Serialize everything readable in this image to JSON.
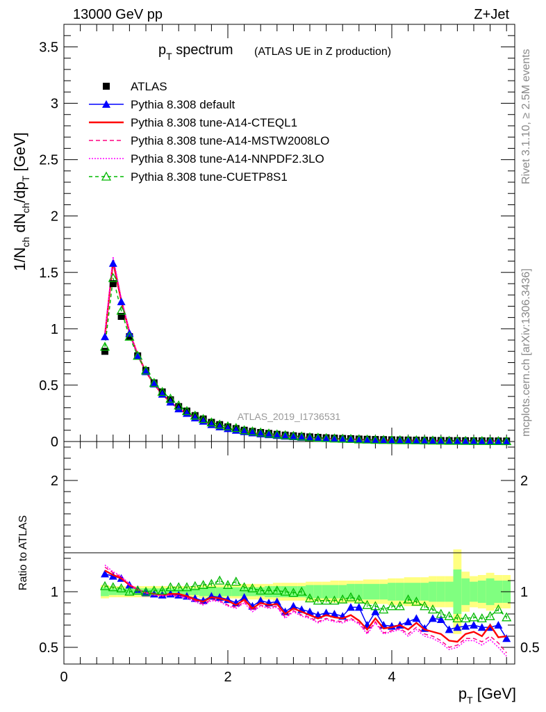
{
  "header": {
    "left": "13000 GeV pp",
    "right": "Z+Jet"
  },
  "title": {
    "main_base": "p",
    "main_sub": "T",
    "main_rest": " spectrum",
    "small": "(ATLAS UE in Z production)"
  },
  "side_text": {
    "rivet": "Rivet 3.1.10, ≥ 2.5M events",
    "mcplots": "mcplots.cern.ch [arXiv:1306.3436]"
  },
  "watermark": "ATLAS_2019_I1736531",
  "axes": {
    "ylabel_main": "1/N_ch dN_ch/dp_T [GeV]",
    "ylabel_ratio": "Ratio to ATLAS",
    "xlabel": "p_T [GeV]"
  },
  "legend": [
    {
      "label": "ATLAS",
      "color": "#000000",
      "marker": "square",
      "dash": ""
    },
    {
      "label": "Pythia 8.308 default",
      "color": "#0000ff",
      "marker": "triangle",
      "dash": ""
    },
    {
      "label": "Pythia 8.308 tune-A14-CTEQL1",
      "color": "#ff0000",
      "marker": "none",
      "dash": ""
    },
    {
      "label": "Pythia 8.308 tune-A14-MSTW2008LO",
      "color": "#ff0080",
      "marker": "none",
      "dash": "6,4"
    },
    {
      "label": "Pythia 8.308 tune-A14-NNPDF2.3LO",
      "color": "#ff00ff",
      "marker": "none",
      "dash": "2,2"
    },
    {
      "label": "Pythia 8.308 tune-CUETP8S1",
      "color": "#00b800",
      "marker": "open-triangle",
      "dash": "5,4"
    }
  ],
  "chart_data": [
    {
      "type": "line",
      "panel": "main",
      "xlim": [
        0,
        5.5
      ],
      "ylim": [
        0,
        3.7
      ],
      "yticks": [
        "0",
        "0.5",
        "1",
        "1.5",
        "2",
        "2.5",
        "3",
        "3.5"
      ],
      "xticks": [
        0,
        2,
        4
      ],
      "x": [
        0.5,
        0.6,
        0.7,
        0.8,
        0.9,
        1.0,
        1.1,
        1.2,
        1.3,
        1.4,
        1.5,
        1.6,
        1.7,
        1.8,
        1.9,
        2.0,
        2.1,
        2.2,
        2.3,
        2.4,
        2.5,
        2.6,
        2.7,
        2.8,
        2.9,
        3.0,
        3.1,
        3.2,
        3.3,
        3.4,
        3.5,
        3.6,
        3.7,
        3.8,
        3.9,
        4.0,
        4.1,
        4.2,
        4.3,
        4.4,
        4.5,
        4.6,
        4.7,
        4.8,
        4.9,
        5.0,
        5.1,
        5.2,
        5.3,
        5.4
      ],
      "series": [
        {
          "name": "ATLAS",
          "values": [
            0.8,
            1.4,
            1.11,
            0.93,
            0.76,
            0.63,
            0.52,
            0.44,
            0.37,
            0.31,
            0.27,
            0.23,
            0.2,
            0.17,
            0.15,
            0.13,
            0.115,
            0.1,
            0.09,
            0.08,
            0.072,
            0.064,
            0.057,
            0.051,
            0.046,
            0.041,
            0.037,
            0.033,
            0.03,
            0.027,
            0.025,
            0.022,
            0.02,
            0.018,
            0.017,
            0.015,
            0.014,
            0.013,
            0.012,
            0.011,
            0.01,
            0.009,
            0.0085,
            0.008,
            0.0072,
            0.0066,
            0.006,
            0.0055,
            0.005,
            0.0046
          ]
        },
        {
          "name": "Pythia 8.308 default",
          "values": [
            0.93,
            1.58,
            1.24,
            0.96,
            0.76,
            0.62,
            0.51,
            0.42,
            0.35,
            0.29,
            0.25,
            0.21,
            0.18,
            0.15,
            0.13,
            0.115,
            0.1,
            0.088,
            0.077,
            0.068,
            0.061,
            0.054,
            0.048,
            0.043,
            0.038,
            0.034,
            0.03,
            0.027,
            0.024,
            0.022,
            0.02,
            0.018,
            0.016,
            0.014,
            0.013,
            0.012,
            0.011,
            0.01,
            0.009,
            0.008,
            0.0075,
            0.007,
            0.0063,
            0.0058,
            0.0052,
            0.0047,
            0.0042,
            0.0038,
            0.0035,
            0.003
          ]
        },
        {
          "name": "Pythia 8.308 tune-A14-CTEQL1",
          "values": [
            0.94,
            1.6,
            1.25,
            0.97,
            0.77,
            0.62,
            0.51,
            0.42,
            0.35,
            0.29,
            0.25,
            0.21,
            0.18,
            0.15,
            0.13,
            0.114,
            0.1,
            0.087,
            0.076,
            0.067,
            0.06,
            0.053,
            0.047,
            0.042,
            0.037,
            0.033,
            0.029,
            0.026,
            0.023,
            0.021,
            0.019,
            0.017,
            0.015,
            0.013,
            0.012,
            0.011,
            0.01,
            0.009,
            0.0085,
            0.0075,
            0.007,
            0.0063,
            0.0058,
            0.0052,
            0.0047,
            0.0043,
            0.0038,
            0.0034,
            0.0031,
            0.0028
          ]
        },
        {
          "name": "Pythia 8.308 tune-A14-MSTW2008LO",
          "values": [
            0.95,
            1.62,
            1.26,
            0.97,
            0.77,
            0.62,
            0.51,
            0.42,
            0.35,
            0.29,
            0.25,
            0.21,
            0.18,
            0.15,
            0.13,
            0.113,
            0.099,
            0.086,
            0.075,
            0.066,
            0.059,
            0.052,
            0.046,
            0.041,
            0.036,
            0.032,
            0.028,
            0.025,
            0.022,
            0.02,
            0.018,
            0.016,
            0.014,
            0.013,
            0.012,
            0.011,
            0.0095,
            0.0085,
            0.0078,
            0.007,
            0.0062,
            0.0056,
            0.005,
            0.0046,
            0.0042,
            0.0038,
            0.0034,
            0.003,
            0.0027,
            0.0025
          ]
        },
        {
          "name": "Pythia 8.308 tune-A14-NNPDF2.3LO",
          "values": [
            0.96,
            1.64,
            1.27,
            0.98,
            0.77,
            0.62,
            0.51,
            0.42,
            0.35,
            0.29,
            0.25,
            0.21,
            0.18,
            0.15,
            0.13,
            0.113,
            0.099,
            0.086,
            0.075,
            0.066,
            0.058,
            0.052,
            0.046,
            0.04,
            0.036,
            0.032,
            0.028,
            0.025,
            0.022,
            0.02,
            0.018,
            0.016,
            0.014,
            0.013,
            0.012,
            0.011,
            0.0095,
            0.0085,
            0.0077,
            0.007,
            0.0062,
            0.0056,
            0.005,
            0.0046,
            0.0042,
            0.0038,
            0.0034,
            0.003,
            0.0027,
            0.0024
          ]
        },
        {
          "name": "Pythia 8.308 tune-CUETP8S1",
          "values": [
            0.84,
            1.45,
            1.16,
            0.93,
            0.76,
            0.63,
            0.52,
            0.44,
            0.38,
            0.32,
            0.27,
            0.23,
            0.2,
            0.17,
            0.15,
            0.135,
            0.12,
            0.1,
            0.09,
            0.08,
            0.071,
            0.063,
            0.056,
            0.05,
            0.045,
            0.038,
            0.034,
            0.03,
            0.027,
            0.025,
            0.023,
            0.019,
            0.017,
            0.015,
            0.014,
            0.013,
            0.012,
            0.012,
            0.011,
            0.0095,
            0.0085,
            0.0075,
            0.0065,
            0.006,
            0.0055,
            0.005,
            0.0046,
            0.0043,
            0.0038,
            0.0035
          ]
        }
      ]
    },
    {
      "type": "line",
      "panel": "ratio",
      "xlim": [
        0,
        5.5
      ],
      "ylim": [
        0.35,
        2.35
      ],
      "yticks": [
        "0.5",
        "1",
        "2"
      ],
      "xticks": [
        0,
        2,
        4
      ],
      "xtick_labels": [
        "0",
        "2",
        "4"
      ],
      "x": [
        0.5,
        0.6,
        0.7,
        0.8,
        0.9,
        1.0,
        1.1,
        1.2,
        1.3,
        1.4,
        1.5,
        1.6,
        1.7,
        1.8,
        1.9,
        2.0,
        2.1,
        2.2,
        2.3,
        2.4,
        2.5,
        2.6,
        2.7,
        2.8,
        2.9,
        3.0,
        3.1,
        3.2,
        3.3,
        3.4,
        3.5,
        3.6,
        3.7,
        3.8,
        3.9,
        4.0,
        4.1,
        4.2,
        4.3,
        4.4,
        4.5,
        4.6,
        4.7,
        4.8,
        4.9,
        5.0,
        5.1,
        5.2,
        5.3,
        5.4
      ],
      "band_inner": [
        0.04,
        0.03,
        0.03,
        0.03,
        0.03,
        0.03,
        0.03,
        0.03,
        0.03,
        0.03,
        0.03,
        0.03,
        0.04,
        0.04,
        0.04,
        0.04,
        0.04,
        0.04,
        0.04,
        0.04,
        0.05,
        0.05,
        0.05,
        0.05,
        0.05,
        0.06,
        0.06,
        0.06,
        0.06,
        0.06,
        0.07,
        0.07,
        0.07,
        0.07,
        0.07,
        0.08,
        0.08,
        0.08,
        0.08,
        0.08,
        0.09,
        0.09,
        0.09,
        0.2,
        0.12,
        0.09,
        0.1,
        0.12,
        0.1,
        0.1
      ],
      "band_outer": [
        0.06,
        0.05,
        0.05,
        0.05,
        0.05,
        0.05,
        0.05,
        0.05,
        0.05,
        0.05,
        0.05,
        0.05,
        0.06,
        0.06,
        0.06,
        0.06,
        0.06,
        0.07,
        0.07,
        0.07,
        0.07,
        0.08,
        0.08,
        0.08,
        0.08,
        0.09,
        0.09,
        0.09,
        0.1,
        0.1,
        0.1,
        0.1,
        0.11,
        0.11,
        0.11,
        0.12,
        0.12,
        0.13,
        0.13,
        0.13,
        0.14,
        0.14,
        0.14,
        0.38,
        0.18,
        0.14,
        0.15,
        0.17,
        0.15,
        0.15
      ],
      "series": [
        {
          "name": "Pythia 8.308 default",
          "values": [
            1.16,
            1.14,
            1.12,
            1.06,
            1.02,
            0.99,
            0.98,
            0.97,
            0.98,
            0.97,
            0.96,
            0.94,
            0.92,
            0.96,
            0.95,
            0.93,
            0.9,
            0.95,
            0.87,
            0.92,
            0.9,
            0.91,
            0.82,
            0.87,
            0.84,
            0.82,
            0.79,
            0.81,
            0.8,
            0.78,
            0.86,
            0.86,
            0.7,
            0.82,
            0.7,
            0.69,
            0.7,
            0.73,
            0.76,
            0.67,
            0.76,
            0.75,
            0.66,
            0.68,
            0.69,
            0.7,
            0.68,
            0.68,
            0.7,
            0.58
          ]
        },
        {
          "name": "Pythia 8.308 tune-A14-CTEQL1",
          "values": [
            1.19,
            1.15,
            1.12,
            1.06,
            1.02,
            0.99,
            0.98,
            0.97,
            0.98,
            0.98,
            0.96,
            0.93,
            0.91,
            0.95,
            0.94,
            0.92,
            0.88,
            0.93,
            0.85,
            0.9,
            0.88,
            0.89,
            0.8,
            0.85,
            0.82,
            0.79,
            0.76,
            0.79,
            0.77,
            0.76,
            0.79,
            0.74,
            0.66,
            0.76,
            0.67,
            0.68,
            0.7,
            0.66,
            0.72,
            0.66,
            0.64,
            0.62,
            0.56,
            0.55,
            0.62,
            0.64,
            0.6,
            0.7,
            0.59,
            0.6
          ]
        },
        {
          "name": "Pythia 8.308 tune-A14-MSTW2008LO",
          "values": [
            1.22,
            1.17,
            1.13,
            1.06,
            1.02,
            0.99,
            0.97,
            0.97,
            0.97,
            0.96,
            0.95,
            0.92,
            0.89,
            0.93,
            0.92,
            0.88,
            0.86,
            0.91,
            0.83,
            0.88,
            0.86,
            0.87,
            0.77,
            0.83,
            0.79,
            0.77,
            0.73,
            0.76,
            0.74,
            0.73,
            0.76,
            0.72,
            0.63,
            0.73,
            0.63,
            0.65,
            0.67,
            0.62,
            0.68,
            0.62,
            0.6,
            0.56,
            0.5,
            0.52,
            0.58,
            0.58,
            0.55,
            0.6,
            0.54,
            0.45
          ]
        },
        {
          "name": "Pythia 8.308 tune-A14-NNPDF2.3LO",
          "values": [
            1.24,
            1.18,
            1.14,
            1.07,
            1.02,
            0.99,
            0.97,
            0.96,
            0.97,
            0.96,
            0.94,
            0.91,
            0.88,
            0.92,
            0.91,
            0.87,
            0.85,
            0.9,
            0.82,
            0.87,
            0.85,
            0.86,
            0.76,
            0.82,
            0.78,
            0.76,
            0.72,
            0.75,
            0.73,
            0.72,
            0.75,
            0.71,
            0.62,
            0.72,
            0.62,
            0.64,
            0.66,
            0.6,
            0.66,
            0.6,
            0.58,
            0.54,
            0.48,
            0.5,
            0.56,
            0.56,
            0.52,
            0.57,
            0.5,
            0.42
          ]
        },
        {
          "name": "Pythia 8.308 tune-CUETP8S1",
          "values": [
            1.05,
            1.04,
            1.03,
            1.0,
            1.01,
            1.0,
            1.01,
            1.01,
            1.04,
            1.04,
            1.04,
            1.05,
            1.06,
            1.07,
            1.1,
            1.06,
            1.09,
            1.04,
            1.03,
            1.01,
            1.01,
            1.01,
            1.0,
            0.99,
            1.0,
            0.94,
            0.92,
            0.92,
            0.92,
            0.93,
            0.95,
            0.93,
            0.88,
            0.87,
            0.84,
            0.87,
            0.87,
            0.93,
            0.91,
            0.87,
            0.84,
            0.8,
            0.78,
            0.76,
            0.76,
            0.77,
            0.76,
            0.78,
            0.84,
            0.77
          ]
        }
      ]
    }
  ]
}
